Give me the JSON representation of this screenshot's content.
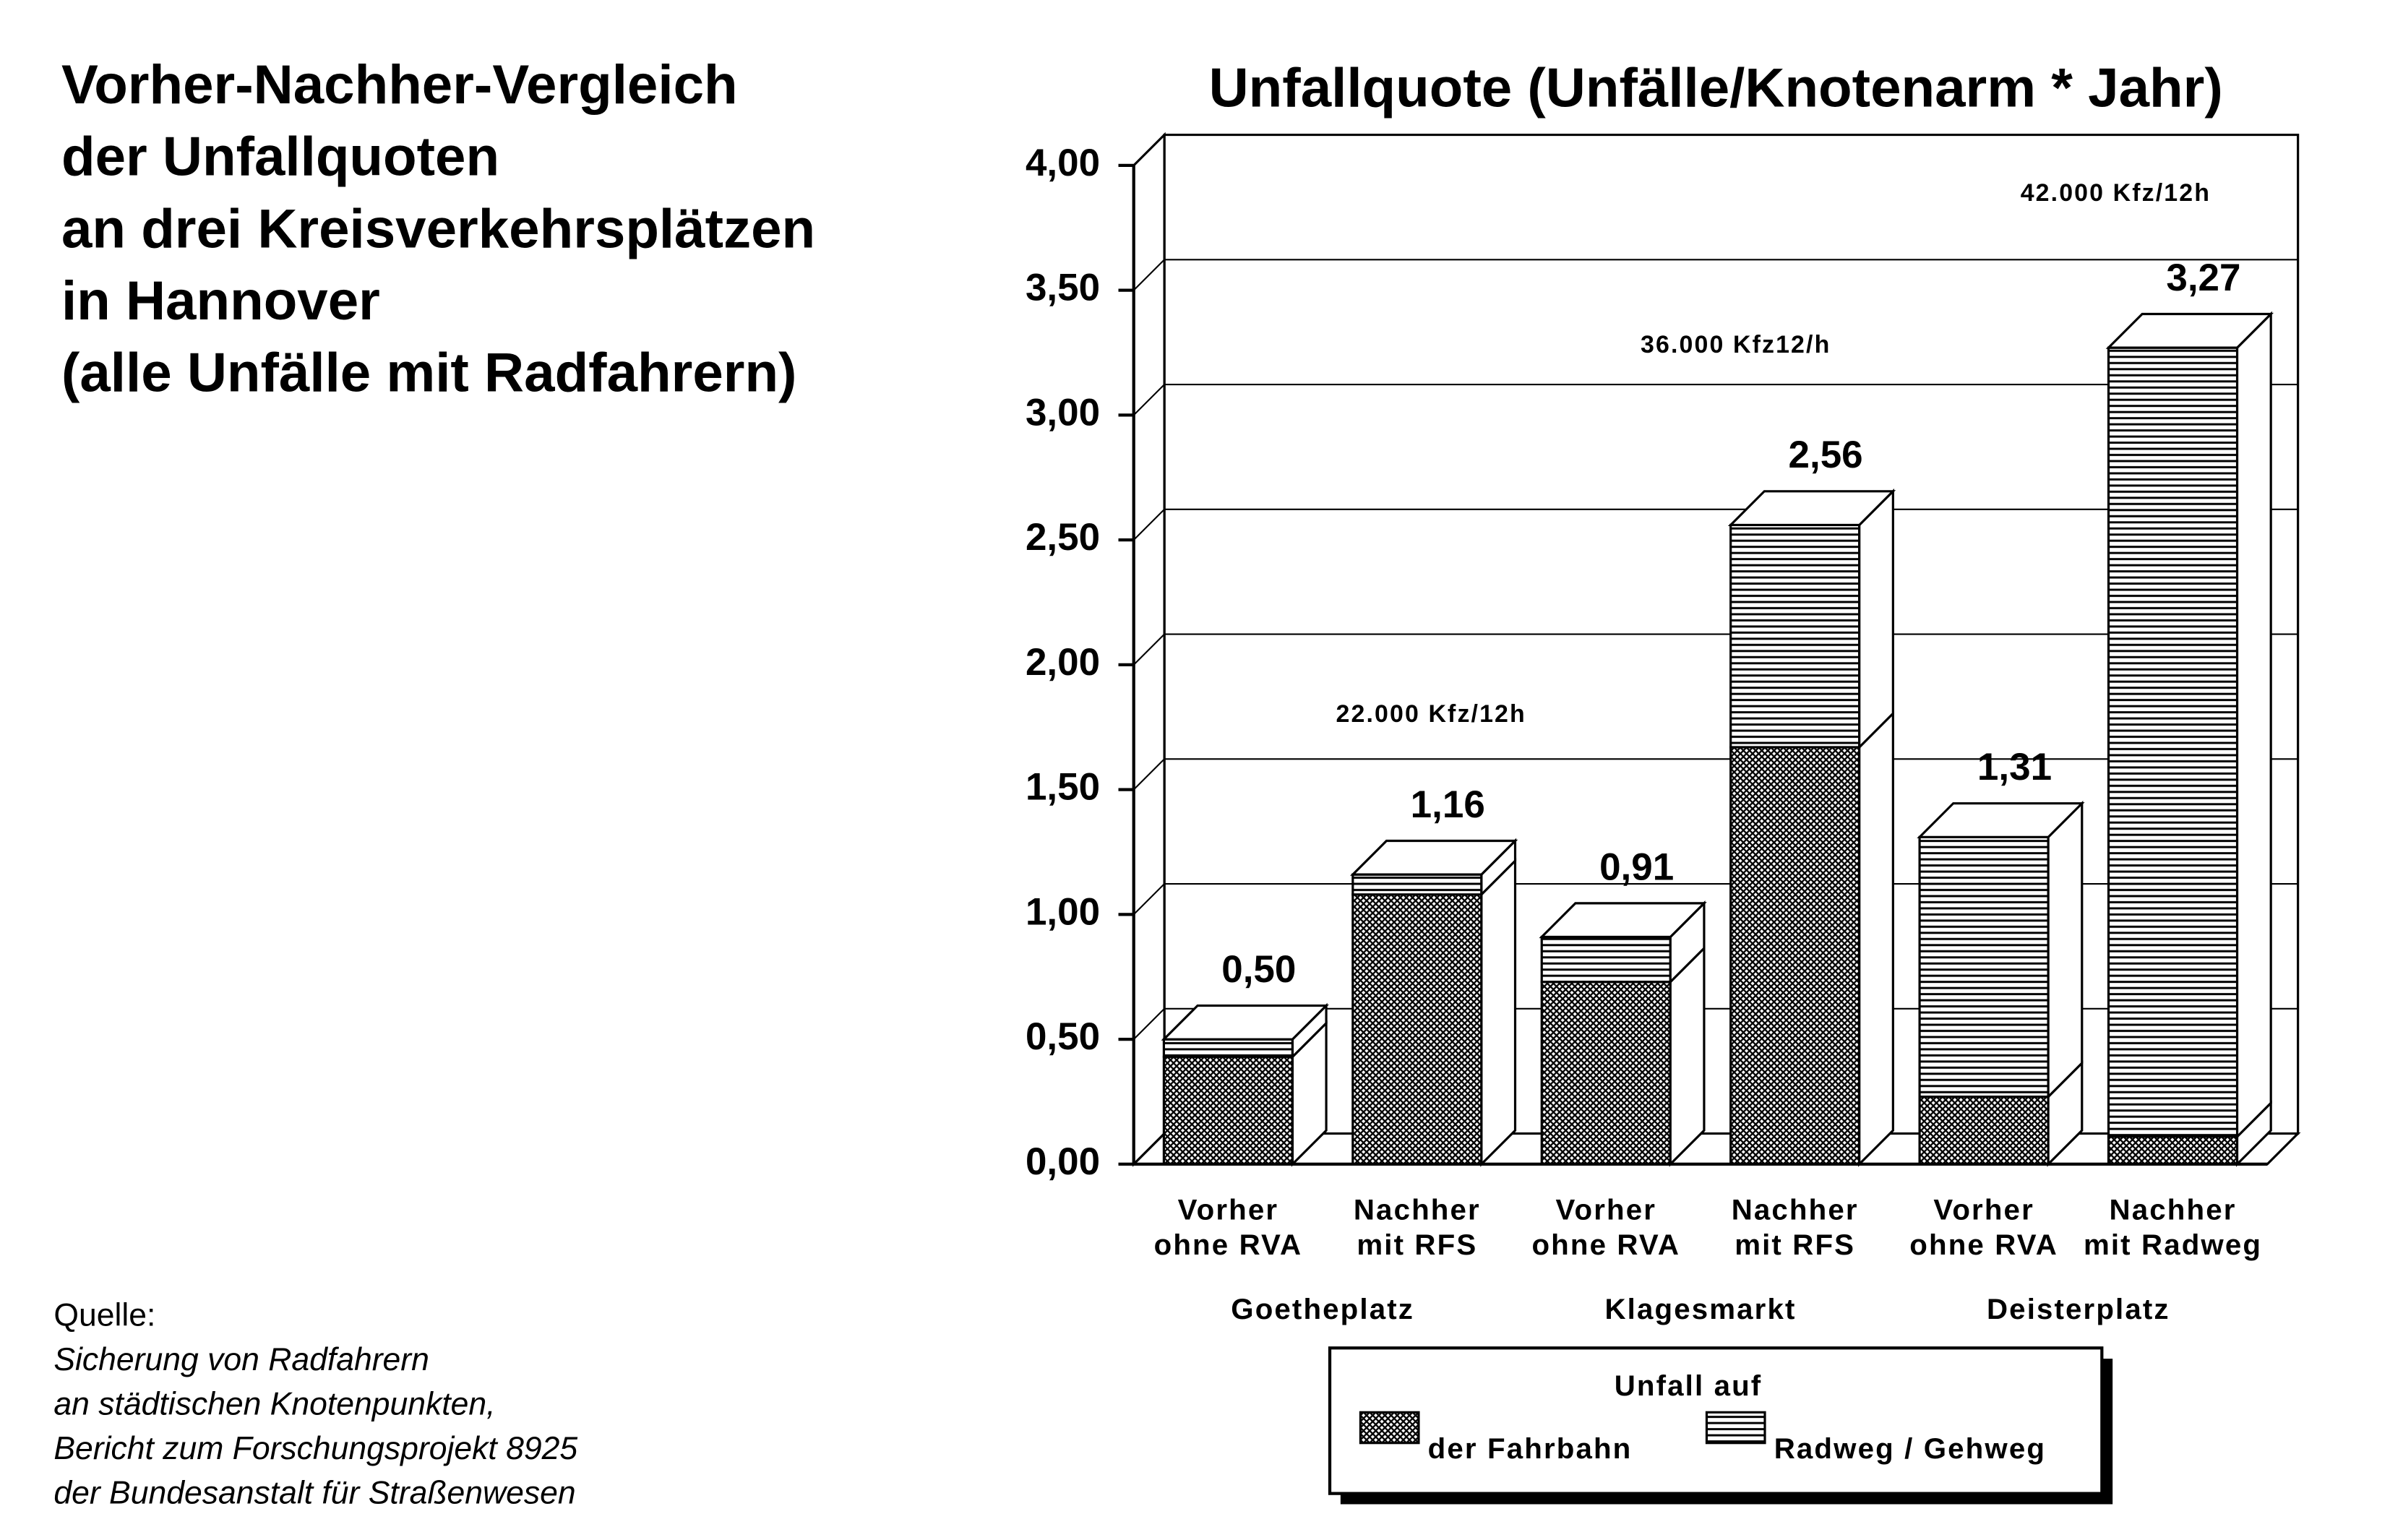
{
  "heading": [
    "Vorher-Nachher-Vergleich",
    "der Unfallquoten",
    "an drei Kreisverkehrsplätzen",
    "in Hannover",
    "(alle Unfälle mit Radfahrern)"
  ],
  "source": {
    "label": "Quelle:",
    "lines": [
      "Sicherung von Radfahrern",
      "an städtischen Knotenpunkten,",
      "Bericht zum Forschungsprojekt 8925",
      "der Bundesanstalt für Straßenwesen"
    ]
  },
  "chart_data": {
    "type": "bar",
    "stacked": true,
    "title": "Unfallquote (Unfälle/Knotenarm * Jahr)",
    "categories": [
      [
        "Vorher",
        "ohne RVA"
      ],
      [
        "Nachher",
        "mit RFS"
      ],
      [
        "Vorher",
        "ohne RVA"
      ],
      [
        "Nachher",
        "mit RFS"
      ],
      [
        "Vorher",
        "ohne RVA"
      ],
      [
        "Nachher",
        "mit Radweg"
      ]
    ],
    "groups": [
      "Goetheplatz",
      "Klagesmarkt",
      "Deisterplatz"
    ],
    "series": [
      {
        "name": "der Fahrbahn",
        "color": "crosshatch",
        "values": [
          0.43,
          1.08,
          0.73,
          1.67,
          0.27,
          0.11
        ]
      },
      {
        "name": "Radweg / Gehweg",
        "color": "horizontal-lines",
        "values": [
          0.07,
          0.08,
          0.18,
          0.89,
          1.04,
          3.16
        ]
      }
    ],
    "totals": [
      0.5,
      1.16,
      0.91,
      2.56,
      1.31,
      3.27
    ],
    "total_labels": [
      "0,50",
      "1,16",
      "0,91",
      "2,56",
      "1,31",
      "3,27"
    ],
    "annotations": [
      "22.000 Kfz/12h",
      "36.000 Kfz12/h",
      "42.000 Kfz/12h"
    ],
    "legend_title": "Unfall auf",
    "ylim": [
      0,
      4
    ],
    "yticks": [
      {
        "value": 0,
        "label": "0,00"
      },
      {
        "value": 0.5,
        "label": "0,50"
      },
      {
        "value": 1,
        "label": "1,00"
      },
      {
        "value": 1.5,
        "label": "1,50"
      },
      {
        "value": 2,
        "label": "2,00"
      },
      {
        "value": 2.5,
        "label": "2,50"
      },
      {
        "value": 3,
        "label": "3,00"
      },
      {
        "value": 3.5,
        "label": "3,50"
      },
      {
        "value": 4,
        "label": "4,00"
      }
    ],
    "grid": true
  }
}
